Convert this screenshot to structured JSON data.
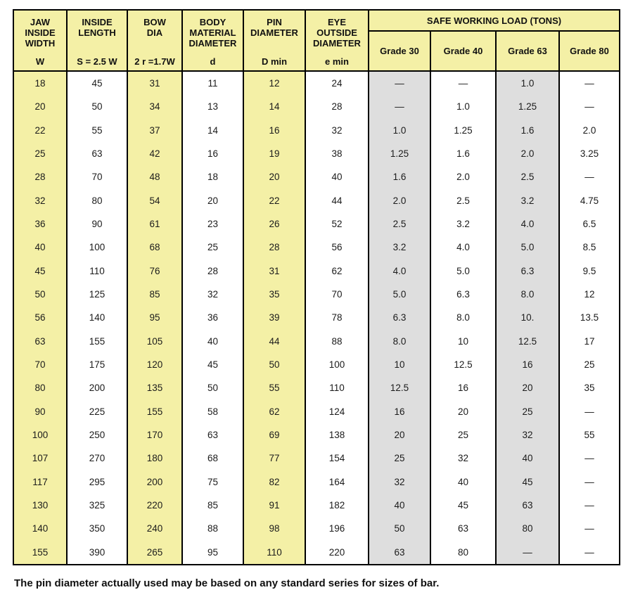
{
  "table": {
    "header": {
      "columns": [
        {
          "id": "jaw-inside-width",
          "title_lines": [
            "JAW",
            "INSIDE",
            "WIDTH"
          ],
          "symbol": "W"
        },
        {
          "id": "inside-length",
          "title_lines": [
            "INSIDE",
            "LENGTH"
          ],
          "symbol": "S = 2.5 W"
        },
        {
          "id": "bow-dia",
          "title_lines": [
            "BOW",
            "DIA"
          ],
          "symbol": "2 r =1.7W"
        },
        {
          "id": "body-material-diameter",
          "title_lines": [
            "BODY",
            "MATERIAL",
            "DIAMETER"
          ],
          "symbol": "d"
        },
        {
          "id": "pin-diameter",
          "title_lines": [
            "PIN",
            "DIAMETER"
          ],
          "symbol": "D min"
        },
        {
          "id": "eye-outside-diameter",
          "title_lines": [
            "EYE",
            "OUTSIDE",
            "DIAMETER"
          ],
          "symbol": "e min"
        }
      ],
      "swl_title": "SAFE WORKING LOAD (TONS)",
      "grades": [
        "Grade 30",
        "Grade 40",
        "Grade 63",
        "Grade 80"
      ]
    },
    "rows": [
      [
        "18",
        "45",
        "31",
        "11",
        "12",
        "24",
        "—",
        "—",
        "1.0",
        "—"
      ],
      [
        "20",
        "50",
        "34",
        "13",
        "14",
        "28",
        "—",
        "1.0",
        "1.25",
        "—"
      ],
      [
        "22",
        "55",
        "37",
        "14",
        "16",
        "32",
        "1.0",
        "1.25",
        "1.6",
        "2.0"
      ],
      [
        "25",
        "63",
        "42",
        "16",
        "19",
        "38",
        "1.25",
        "1.6",
        "2.0",
        "3.25"
      ],
      [
        "28",
        "70",
        "48",
        "18",
        "20",
        "40",
        "1.6",
        "2.0",
        "2.5",
        "—"
      ],
      [
        "32",
        "80",
        "54",
        "20",
        "22",
        "44",
        "2.0",
        "2.5",
        "3.2",
        "4.75"
      ],
      [
        "36",
        "90",
        "61",
        "23",
        "26",
        "52",
        "2.5",
        "3.2",
        "4.0",
        "6.5"
      ],
      [
        "40",
        "100",
        "68",
        "25",
        "28",
        "56",
        "3.2",
        "4.0",
        "5.0",
        "8.5"
      ],
      [
        "45",
        "110",
        "76",
        "28",
        "31",
        "62",
        "4.0",
        "5.0",
        "6.3",
        "9.5"
      ],
      [
        "50",
        "125",
        "85",
        "32",
        "35",
        "70",
        "5.0",
        "6.3",
        "8.0",
        "12"
      ],
      [
        "56",
        "140",
        "95",
        "36",
        "39",
        "78",
        "6.3",
        "8.0",
        "10.",
        "13.5"
      ],
      [
        "63",
        "155",
        "105",
        "40",
        "44",
        "88",
        "8.0",
        "10",
        "12.5",
        "17"
      ],
      [
        "70",
        "175",
        "120",
        "45",
        "50",
        "100",
        "10",
        "12.5",
        "16",
        "25"
      ],
      [
        "80",
        "200",
        "135",
        "50",
        "55",
        "110",
        "12.5",
        "16",
        "20",
        "35"
      ],
      [
        "90",
        "225",
        "155",
        "58",
        "62",
        "124",
        "16",
        "20",
        "25",
        "—"
      ],
      [
        "100",
        "250",
        "170",
        "63",
        "69",
        "138",
        "20",
        "25",
        "32",
        "55"
      ],
      [
        "107",
        "270",
        "180",
        "68",
        "77",
        "154",
        "25",
        "32",
        "40",
        "—"
      ],
      [
        "117",
        "295",
        "200",
        "75",
        "82",
        "164",
        "32",
        "40",
        "45",
        "—"
      ],
      [
        "130",
        "325",
        "220",
        "85",
        "91",
        "182",
        "40",
        "45",
        "63",
        "—"
      ],
      [
        "140",
        "350",
        "240",
        "88",
        "98",
        "196",
        "50",
        "63",
        "80",
        "—"
      ],
      [
        "155",
        "390",
        "265",
        "95",
        "110",
        "220",
        "63",
        "80",
        "—",
        "—"
      ]
    ]
  },
  "footer": {
    "note": "The pin diameter actually used may be based on any standard series for sizes of bar."
  },
  "colors": {
    "column_yellow": "#F4F0A6",
    "column_gray": "#DEDEDE",
    "border": "#000000",
    "page_background": "#FFFFFF"
  }
}
